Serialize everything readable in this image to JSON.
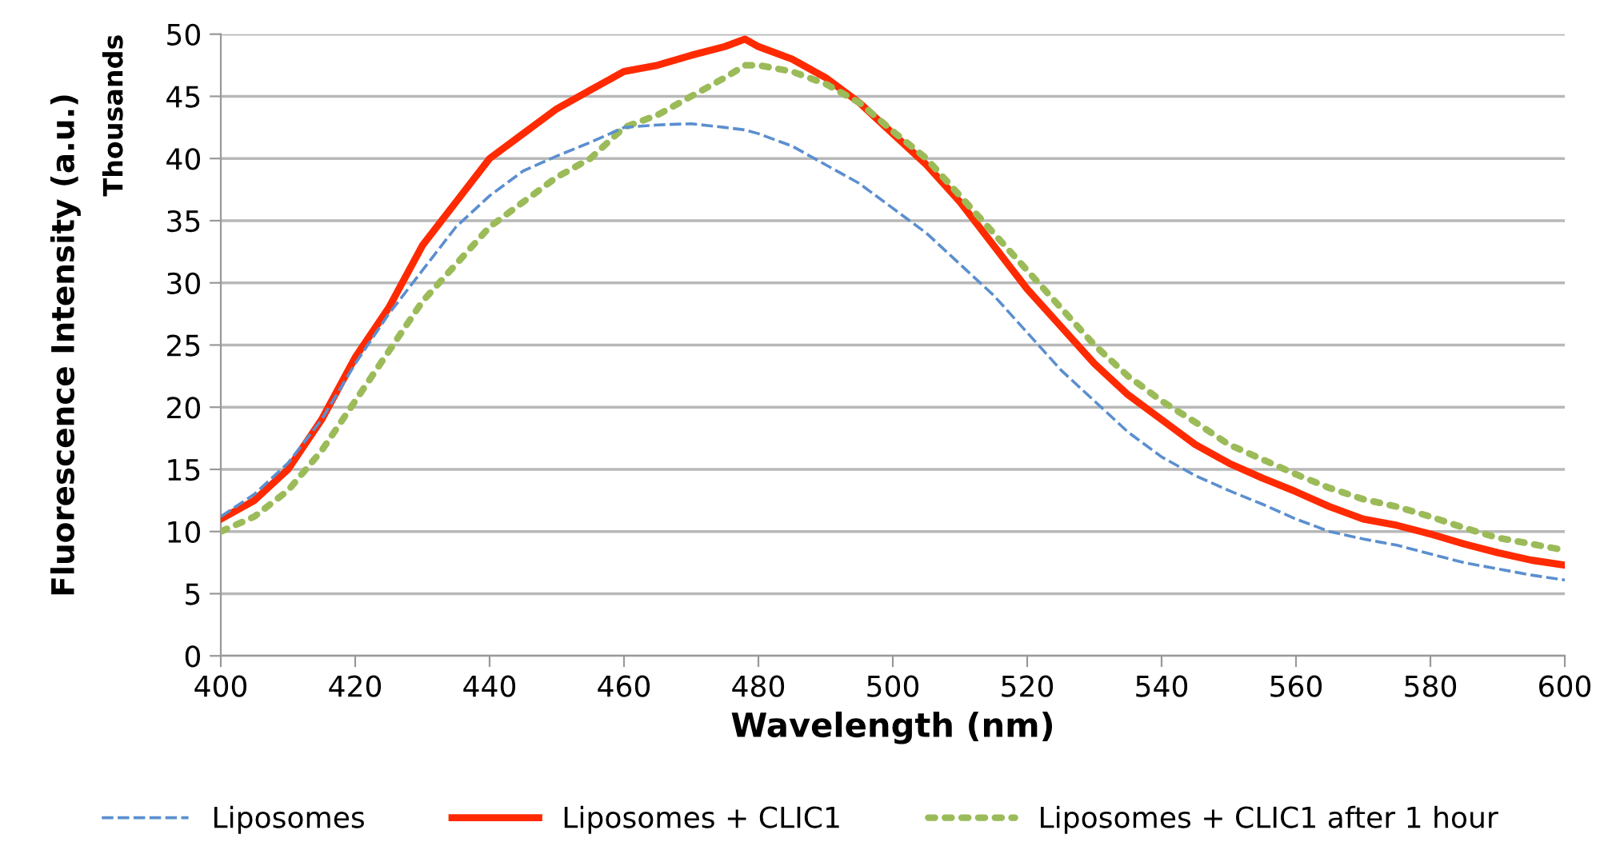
{
  "chart_data": {
    "type": "line",
    "xlabel": "Wavelength (nm)",
    "ylabel": "Fluorescence Intensity (a.u.)",
    "annotations": [
      "Thousands"
    ],
    "x": [
      400,
      405,
      410,
      415,
      420,
      425,
      430,
      435,
      440,
      445,
      450,
      455,
      460,
      465,
      470,
      475,
      478,
      480,
      485,
      490,
      495,
      500,
      505,
      510,
      515,
      520,
      525,
      530,
      535,
      540,
      545,
      550,
      555,
      560,
      565,
      570,
      575,
      580,
      585,
      590,
      595,
      600
    ],
    "series": [
      {
        "name": "Liposomes",
        "color": "#5b8fcf",
        "line_style": "dashed",
        "values": [
          11.2,
          13,
          15.5,
          19,
          23.5,
          27.5,
          31,
          34.5,
          37,
          39,
          40.2,
          41.3,
          42.5,
          42.7,
          42.8,
          42.5,
          42.3,
          42,
          41,
          39.5,
          38,
          36,
          34,
          31.5,
          29,
          26,
          23,
          20.5,
          18,
          16,
          14.5,
          13.3,
          12.2,
          11,
          10,
          9.4,
          8.9,
          8.2,
          7.5,
          7,
          6.5,
          6.1
        ]
      },
      {
        "name": "Liposomes + CLIC1",
        "color": "#ff2a00",
        "line_style": "solid",
        "values": [
          11,
          12.5,
          15,
          19,
          24,
          28,
          33,
          36.5,
          40,
          42,
          44,
          45.5,
          47,
          47.5,
          48.3,
          49,
          49.6,
          49,
          48,
          46.5,
          44.5,
          42,
          39.5,
          36.5,
          33,
          29.5,
          26.5,
          23.5,
          21,
          19,
          17,
          15.5,
          14.3,
          13.2,
          12,
          11,
          10.5,
          9.8,
          9,
          8.3,
          7.7,
          7.3
        ]
      },
      {
        "name": "Liposomes + CLIC1 after 1 hour",
        "color": "#9bbb59",
        "line_style": "dotted",
        "values": [
          10,
          11.2,
          13.3,
          16.5,
          20.5,
          24.5,
          28.5,
          31.5,
          34.5,
          36.5,
          38.5,
          40,
          42.5,
          43.5,
          45,
          46.5,
          47.5,
          47.5,
          47,
          46,
          44.5,
          42.2,
          40,
          37,
          34,
          31,
          28,
          25,
          22.5,
          20.5,
          18.8,
          17,
          15.8,
          14.6,
          13.5,
          12.6,
          12,
          11.2,
          10.3,
          9.5,
          9,
          8.5
        ]
      }
    ],
    "xlim": [
      400,
      600
    ],
    "xticks": [
      400,
      420,
      440,
      460,
      480,
      500,
      520,
      540,
      560,
      580,
      600
    ],
    "ylim": [
      0,
      50
    ],
    "yticks": [
      0,
      5,
      10,
      15,
      20,
      25,
      30,
      35,
      40,
      45,
      50
    ],
    "grid": "y",
    "legend": "bottom",
    "marker": "none"
  }
}
